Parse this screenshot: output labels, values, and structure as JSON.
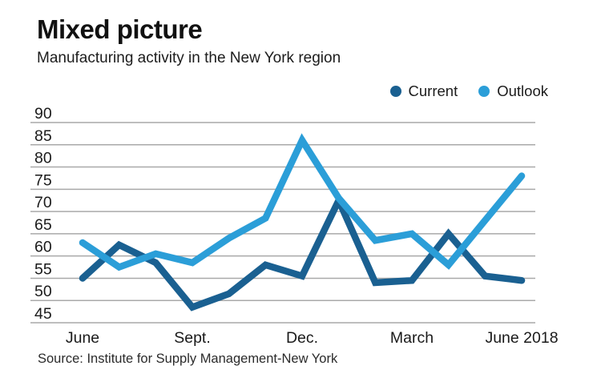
{
  "header": {
    "title": "Mixed picture",
    "subtitle": "Manufacturing activity in the New York region"
  },
  "legend": {
    "items": [
      {
        "label": "Current",
        "color": "#1a6091"
      },
      {
        "label": "Outlook",
        "color": "#2b9ed8"
      }
    ]
  },
  "source": "Source: Institute for Supply Management-New York",
  "colors": {
    "current_line": "#1a6091",
    "outlook_line": "#2b9ed8",
    "grid": "#a9a9a9",
    "background": "#ffffff",
    "text": "#1a1a1a"
  },
  "chart_data": {
    "type": "line",
    "title": "Mixed picture",
    "subtitle": "Manufacturing activity in the New York region",
    "n_points": 13,
    "x_tick_labels": [
      "June",
      "Sept.",
      "Dec.",
      "March",
      "June 2018"
    ],
    "x_tick_indices": [
      0,
      3,
      6,
      9,
      12
    ],
    "y_tick_labels": [
      "90",
      "85",
      "80",
      "75",
      "70",
      "65",
      "60",
      "55",
      "50",
      "45"
    ],
    "ylim": [
      45,
      90
    ],
    "y_tick_step": 5,
    "grid": "horizontal",
    "legend_position": "top-right",
    "series": [
      {
        "name": "Current",
        "color": "#1a6091",
        "values": [
          55,
          62.5,
          58.5,
          48.5,
          51.5,
          58,
          55.5,
          72.5,
          54,
          54.5,
          65,
          55.5,
          54.5
        ]
      },
      {
        "name": "Outlook",
        "color": "#2b9ed8",
        "values": [
          63,
          57.5,
          60.5,
          58.5,
          64,
          68.5,
          86,
          73,
          63.5,
          65,
          58,
          68,
          78
        ]
      }
    ]
  }
}
